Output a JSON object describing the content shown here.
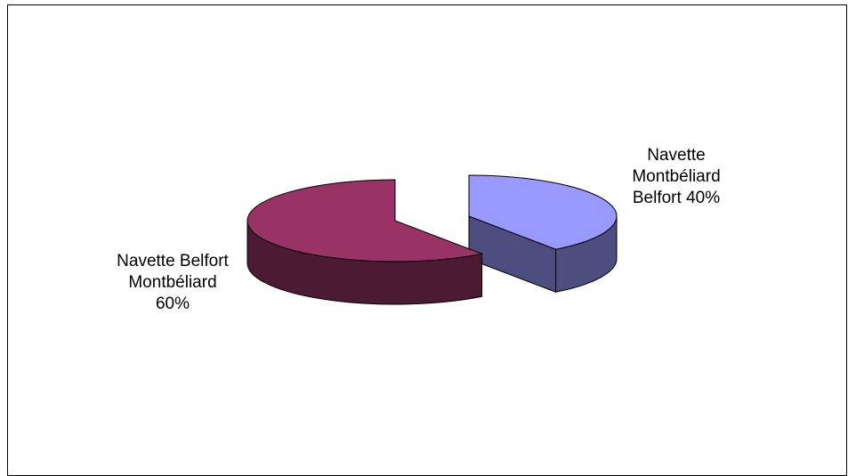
{
  "chart_data": {
    "type": "pie",
    "style": "3d-exploded",
    "title": "",
    "slices": [
      {
        "name": "Navette Montbéliard Belfort",
        "value": 40,
        "label": "Navette\nMontbéliard\nBelfort 40%",
        "top_color": "#9999ff",
        "side_color": "#4d4d80"
      },
      {
        "name": "Navette Belfort Montbéliard",
        "value": 60,
        "label": "Navette Belfort\nMontbéliard\n60%",
        "top_color": "#993366",
        "side_color": "#4d1a33"
      }
    ],
    "legend": "none",
    "grid": false
  }
}
